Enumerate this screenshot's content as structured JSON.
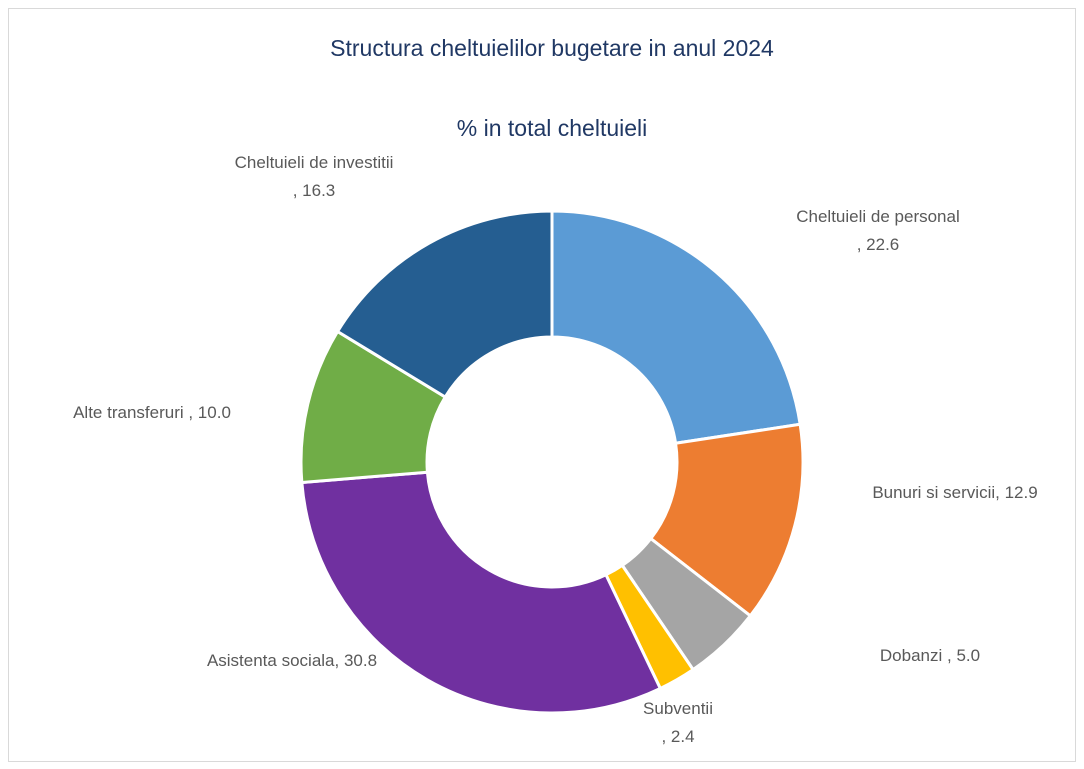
{
  "chart_data": {
    "type": "donut",
    "title": "Structura cheltuielilor bugetare in anul 2024",
    "subtitle": "% in total cheltuieli",
    "categories": [
      "Cheltuieli de personal",
      "Bunuri si servicii",
      "Dobanzi",
      "Subventii",
      "Asistenta sociala",
      "Alte transferuri",
      "Cheltuieli de investitii"
    ],
    "values": [
      22.6,
      12.9,
      5.0,
      2.4,
      30.8,
      10.0,
      16.3
    ],
    "value_labels": [
      ", 22.6",
      ", 12.9",
      " , 5.0",
      ", 2.4",
      ", 30.8",
      " , 10.0",
      ", 16.3"
    ],
    "colors": [
      "#5b9bd5",
      "#ed7d31",
      "#a5a5a5",
      "#ffc000",
      "#7030a0",
      "#70ad47",
      "#255e91"
    ]
  }
}
